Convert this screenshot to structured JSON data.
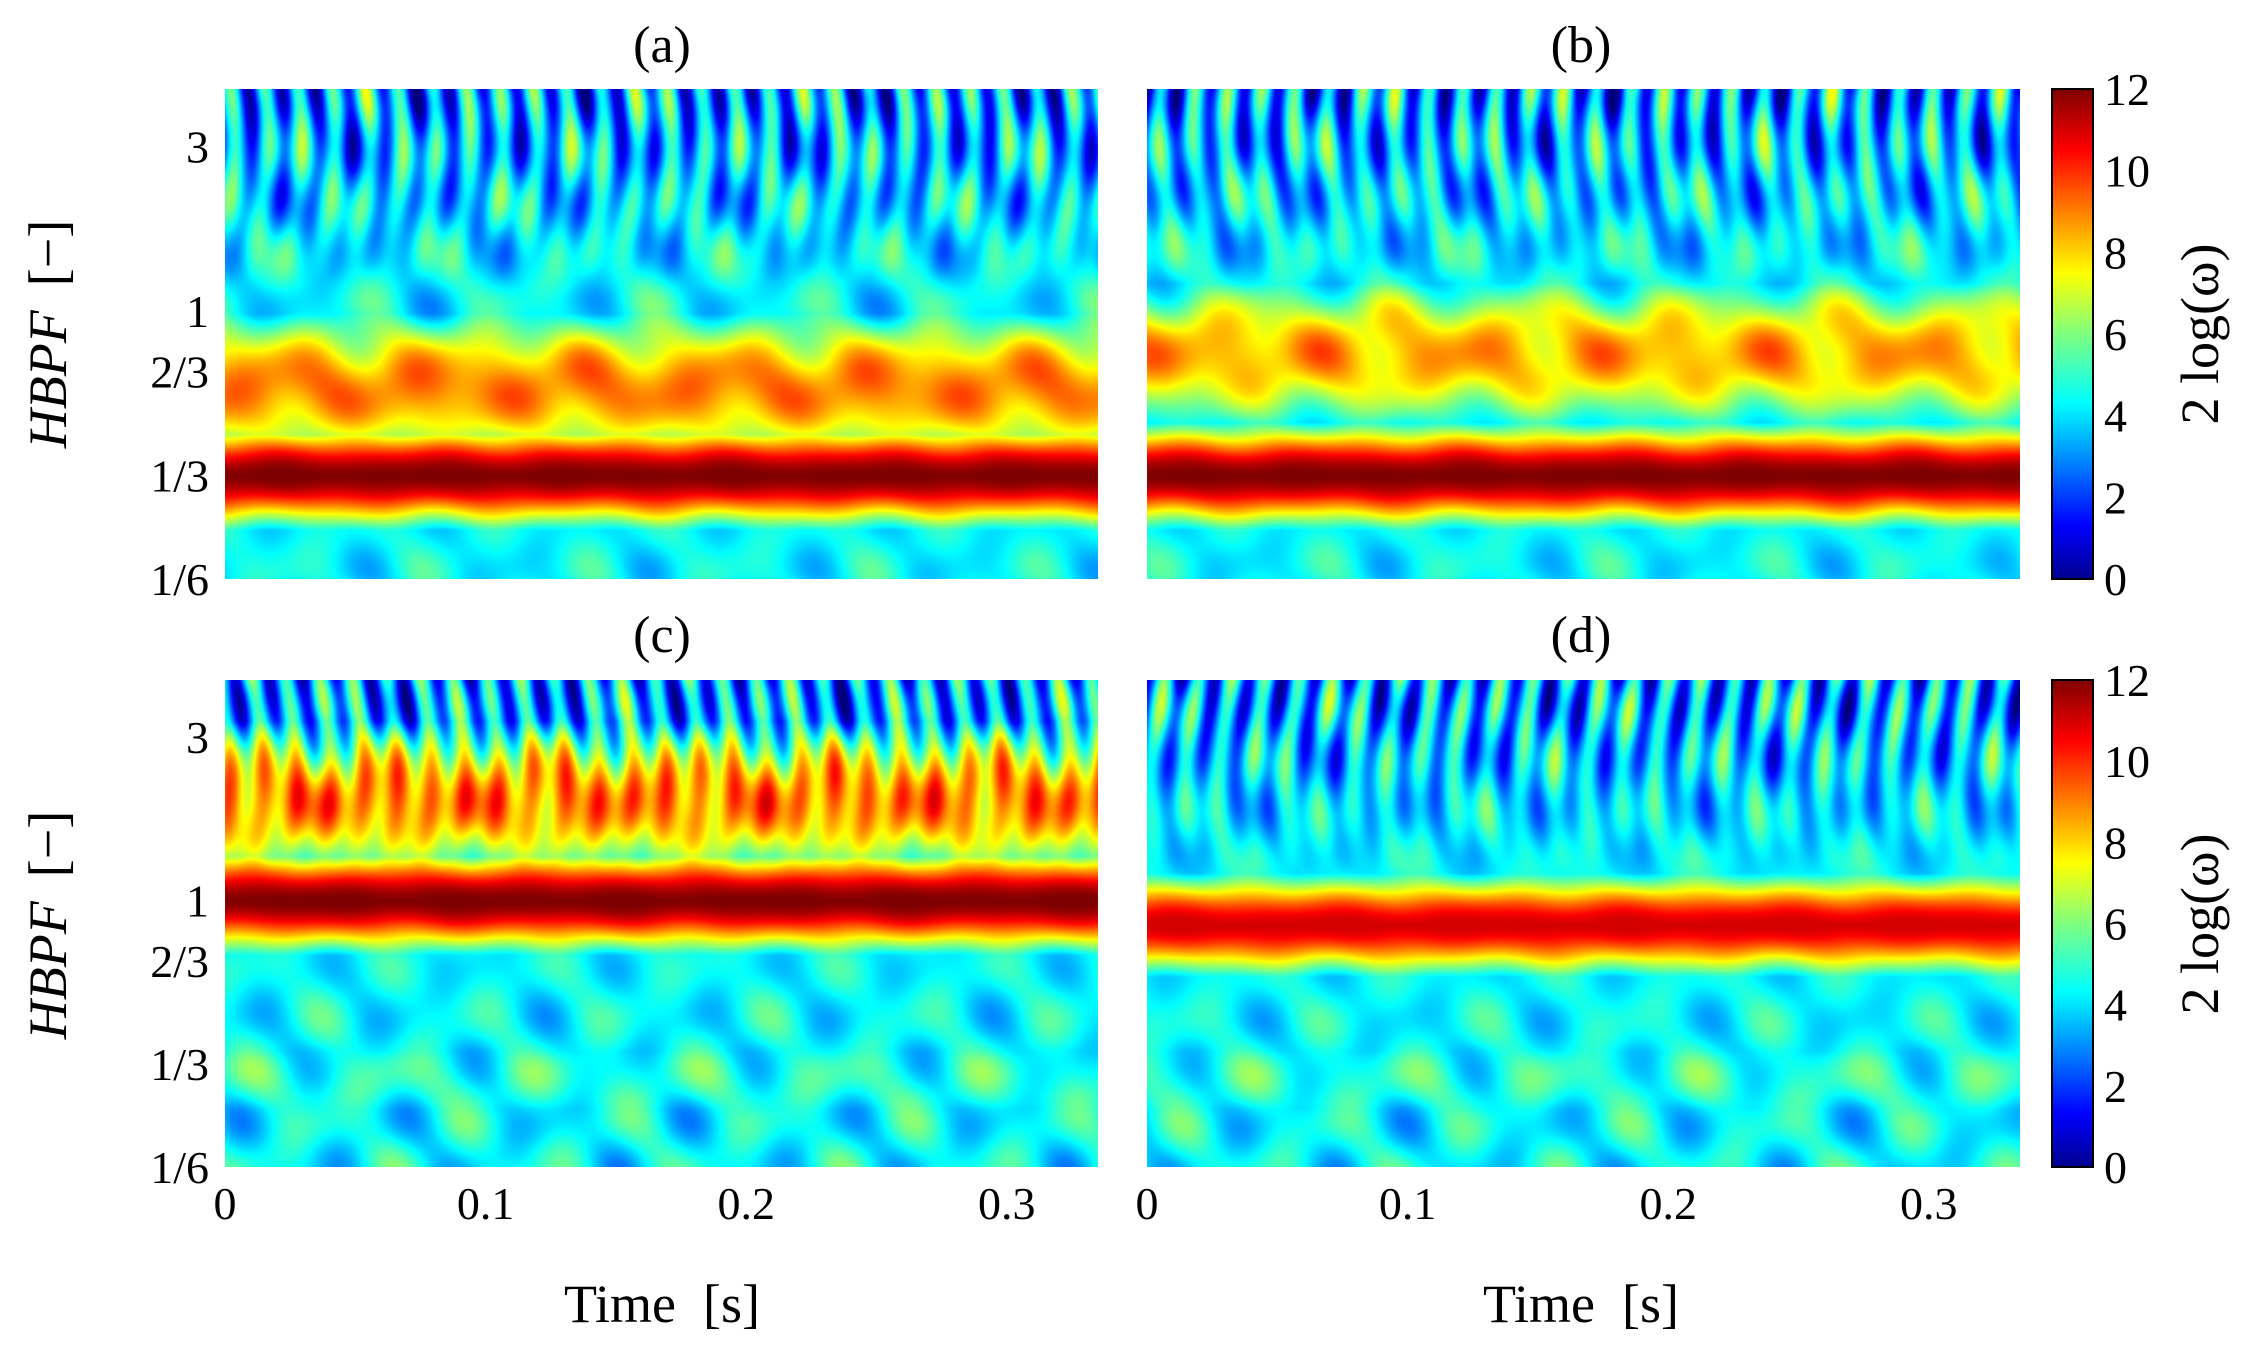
{
  "figure": {
    "ylabel_var": "HBPF",
    "ylabel_unit": "[−]",
    "xlabel": "Time  [s]",
    "colorbar_label": "2 log(ω)"
  },
  "chart_data": [
    {
      "id": "a",
      "type": "heatmap",
      "title": "(a)",
      "xlabel": "",
      "ylabel": "HBPF [−]",
      "xlim": [
        0,
        0.335
      ],
      "y_scale": "log",
      "ylim": [
        0.1667,
        4.4
      ],
      "x_ticks": [],
      "y_ticks": [
        {
          "value": 0.1667,
          "label": "1/6"
        },
        {
          "value": 0.3333,
          "label": "1/3"
        },
        {
          "value": 0.6667,
          "label": "2/3"
        },
        {
          "value": 1,
          "label": "1"
        },
        {
          "value": 3,
          "label": "3"
        }
      ],
      "colormap": "jet",
      "clim": [
        0,
        12
      ],
      "features": [
        {
          "y": 0.3333,
          "level": 12,
          "description": "dominant band"
        },
        {
          "y": 0.6,
          "level": 9
        },
        {
          "y": 2.5,
          "level": 4
        }
      ]
    },
    {
      "id": "b",
      "type": "heatmap",
      "title": "(b)",
      "xlim": [
        0,
        0.335
      ],
      "y_scale": "log",
      "ylim": [
        0.1667,
        4.4
      ],
      "x_ticks": [],
      "y_ticks": [],
      "colormap": "jet",
      "clim": [
        0,
        12
      ],
      "features": [
        {
          "y": 0.3333,
          "level": 12
        },
        {
          "y": 0.75,
          "level": 8.5
        },
        {
          "y": 2.5,
          "level": 4
        }
      ]
    },
    {
      "id": "c",
      "type": "heatmap",
      "title": "(c)",
      "xlabel": "Time  [s]",
      "ylabel": "HBPF [−]",
      "xlim": [
        0,
        0.335
      ],
      "y_scale": "log",
      "ylim": [
        0.1667,
        4.4
      ],
      "x_ticks": [
        {
          "value": 0,
          "label": "0"
        },
        {
          "value": 0.1,
          "label": "0.1"
        },
        {
          "value": 0.2,
          "label": "0.2"
        },
        {
          "value": 0.3,
          "label": "0.3"
        }
      ],
      "y_ticks": [
        {
          "value": 0.1667,
          "label": "1/6"
        },
        {
          "value": 0.3333,
          "label": "1/3"
        },
        {
          "value": 0.6667,
          "label": "2/3"
        },
        {
          "value": 1,
          "label": "1"
        },
        {
          "value": 3,
          "label": "3"
        }
      ],
      "colormap": "jet",
      "clim": [
        0,
        12
      ],
      "features": [
        {
          "y": 1,
          "level": 12
        },
        {
          "y": 2,
          "level": 9.5
        },
        {
          "y": 0.3,
          "level": 5
        }
      ]
    },
    {
      "id": "d",
      "type": "heatmap",
      "title": "(d)",
      "xlabel": "Time  [s]",
      "xlim": [
        0,
        0.335
      ],
      "y_scale": "log",
      "ylim": [
        0.1667,
        4.4
      ],
      "x_ticks": [
        {
          "value": 0,
          "label": "0"
        },
        {
          "value": 0.1,
          "label": "0.1"
        },
        {
          "value": 0.2,
          "label": "0.2"
        },
        {
          "value": 0.3,
          "label": "0.3"
        }
      ],
      "y_ticks": [],
      "colormap": "jet",
      "clim": [
        0,
        12
      ],
      "features": [
        {
          "y": 0.85,
          "level": 11
        },
        {
          "y": 2.5,
          "level": 4
        },
        {
          "y": 0.3,
          "level": 5
        }
      ]
    }
  ],
  "colorbars": [
    {
      "label": "2 log(ω)",
      "min": 0,
      "max": 12,
      "ticks": [
        0,
        2,
        4,
        6,
        8,
        10,
        12
      ]
    },
    {
      "label": "2 log(ω)",
      "min": 0,
      "max": 12,
      "ticks": [
        0,
        2,
        4,
        6,
        8,
        10,
        12
      ]
    }
  ]
}
